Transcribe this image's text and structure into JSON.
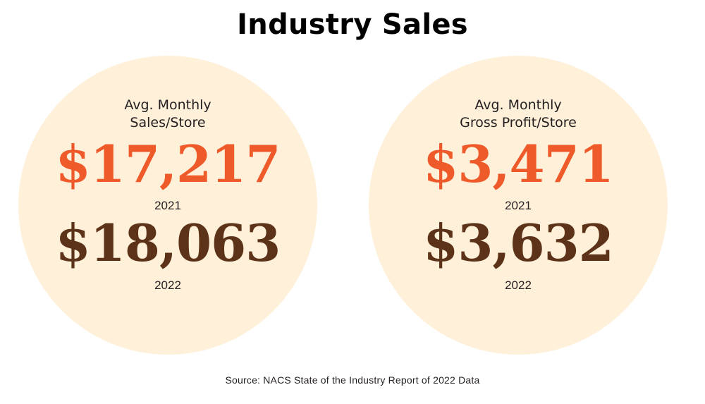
{
  "title": "Industry Sales",
  "colors": {
    "circle_fill": "#fff0da",
    "value_2021": "#ee5a29",
    "value_2022": "#5c3318",
    "text": "#231f20"
  },
  "metrics": [
    {
      "label_line1": "Avg. Monthly",
      "label_line2": "Sales/Store",
      "value_2021": "$17,217",
      "year_2021": "2021",
      "value_2022": "$18,063",
      "year_2022": "2022"
    },
    {
      "label_line1": "Avg. Monthly",
      "label_line2": "Gross Profit/Store",
      "value_2021": "$3,471",
      "year_2021": "2021",
      "value_2022": "$3,632",
      "year_2022": "2022"
    }
  ],
  "source": "Source: NACS State of the Industry Report of 2022 Data"
}
